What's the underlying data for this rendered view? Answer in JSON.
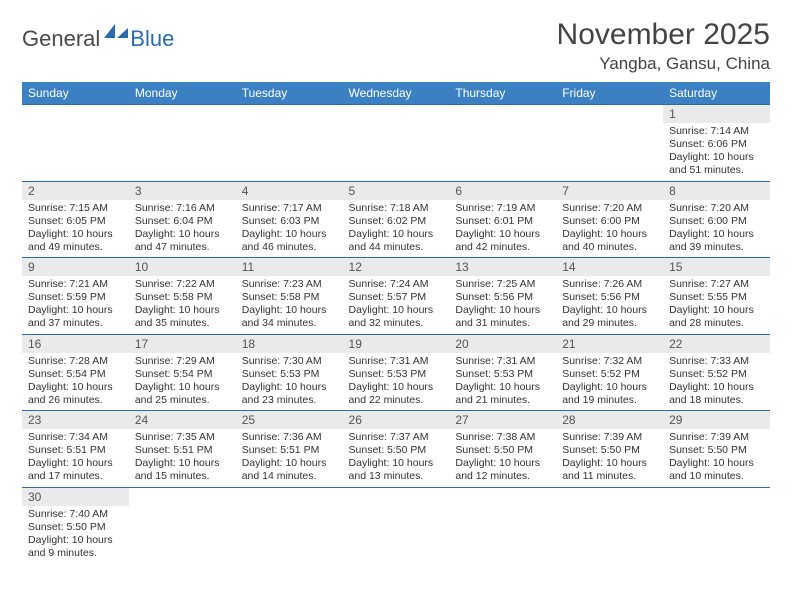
{
  "logo": {
    "text1": "General",
    "text2": "Blue"
  },
  "title": "November 2025",
  "location": "Yangba, Gansu, China",
  "colors": {
    "header_bg": "#3a80c2",
    "header_text": "#ffffff",
    "border": "#2a6bb0",
    "daynum_bg": "#eaeaea",
    "text": "#333333"
  },
  "day_headers": [
    "Sunday",
    "Monday",
    "Tuesday",
    "Wednesday",
    "Thursday",
    "Friday",
    "Saturday"
  ],
  "weeks": [
    [
      null,
      null,
      null,
      null,
      null,
      null,
      {
        "n": "1",
        "sr": "7:14 AM",
        "ss": "6:06 PM",
        "dl": "10 hours and 51 minutes."
      }
    ],
    [
      {
        "n": "2",
        "sr": "7:15 AM",
        "ss": "6:05 PM",
        "dl": "10 hours and 49 minutes."
      },
      {
        "n": "3",
        "sr": "7:16 AM",
        "ss": "6:04 PM",
        "dl": "10 hours and 47 minutes."
      },
      {
        "n": "4",
        "sr": "7:17 AM",
        "ss": "6:03 PM",
        "dl": "10 hours and 46 minutes."
      },
      {
        "n": "5",
        "sr": "7:18 AM",
        "ss": "6:02 PM",
        "dl": "10 hours and 44 minutes."
      },
      {
        "n": "6",
        "sr": "7:19 AM",
        "ss": "6:01 PM",
        "dl": "10 hours and 42 minutes."
      },
      {
        "n": "7",
        "sr": "7:20 AM",
        "ss": "6:00 PM",
        "dl": "10 hours and 40 minutes."
      },
      {
        "n": "8",
        "sr": "7:20 AM",
        "ss": "6:00 PM",
        "dl": "10 hours and 39 minutes."
      }
    ],
    [
      {
        "n": "9",
        "sr": "7:21 AM",
        "ss": "5:59 PM",
        "dl": "10 hours and 37 minutes."
      },
      {
        "n": "10",
        "sr": "7:22 AM",
        "ss": "5:58 PM",
        "dl": "10 hours and 35 minutes."
      },
      {
        "n": "11",
        "sr": "7:23 AM",
        "ss": "5:58 PM",
        "dl": "10 hours and 34 minutes."
      },
      {
        "n": "12",
        "sr": "7:24 AM",
        "ss": "5:57 PM",
        "dl": "10 hours and 32 minutes."
      },
      {
        "n": "13",
        "sr": "7:25 AM",
        "ss": "5:56 PM",
        "dl": "10 hours and 31 minutes."
      },
      {
        "n": "14",
        "sr": "7:26 AM",
        "ss": "5:56 PM",
        "dl": "10 hours and 29 minutes."
      },
      {
        "n": "15",
        "sr": "7:27 AM",
        "ss": "5:55 PM",
        "dl": "10 hours and 28 minutes."
      }
    ],
    [
      {
        "n": "16",
        "sr": "7:28 AM",
        "ss": "5:54 PM",
        "dl": "10 hours and 26 minutes."
      },
      {
        "n": "17",
        "sr": "7:29 AM",
        "ss": "5:54 PM",
        "dl": "10 hours and 25 minutes."
      },
      {
        "n": "18",
        "sr": "7:30 AM",
        "ss": "5:53 PM",
        "dl": "10 hours and 23 minutes."
      },
      {
        "n": "19",
        "sr": "7:31 AM",
        "ss": "5:53 PM",
        "dl": "10 hours and 22 minutes."
      },
      {
        "n": "20",
        "sr": "7:31 AM",
        "ss": "5:53 PM",
        "dl": "10 hours and 21 minutes."
      },
      {
        "n": "21",
        "sr": "7:32 AM",
        "ss": "5:52 PM",
        "dl": "10 hours and 19 minutes."
      },
      {
        "n": "22",
        "sr": "7:33 AM",
        "ss": "5:52 PM",
        "dl": "10 hours and 18 minutes."
      }
    ],
    [
      {
        "n": "23",
        "sr": "7:34 AM",
        "ss": "5:51 PM",
        "dl": "10 hours and 17 minutes."
      },
      {
        "n": "24",
        "sr": "7:35 AM",
        "ss": "5:51 PM",
        "dl": "10 hours and 15 minutes."
      },
      {
        "n": "25",
        "sr": "7:36 AM",
        "ss": "5:51 PM",
        "dl": "10 hours and 14 minutes."
      },
      {
        "n": "26",
        "sr": "7:37 AM",
        "ss": "5:50 PM",
        "dl": "10 hours and 13 minutes."
      },
      {
        "n": "27",
        "sr": "7:38 AM",
        "ss": "5:50 PM",
        "dl": "10 hours and 12 minutes."
      },
      {
        "n": "28",
        "sr": "7:39 AM",
        "ss": "5:50 PM",
        "dl": "10 hours and 11 minutes."
      },
      {
        "n": "29",
        "sr": "7:39 AM",
        "ss": "5:50 PM",
        "dl": "10 hours and 10 minutes."
      }
    ],
    [
      {
        "n": "30",
        "sr": "7:40 AM",
        "ss": "5:50 PM",
        "dl": "10 hours and 9 minutes."
      },
      null,
      null,
      null,
      null,
      null,
      null
    ]
  ],
  "labels": {
    "sunrise": "Sunrise:",
    "sunset": "Sunset:",
    "daylight": "Daylight:"
  }
}
